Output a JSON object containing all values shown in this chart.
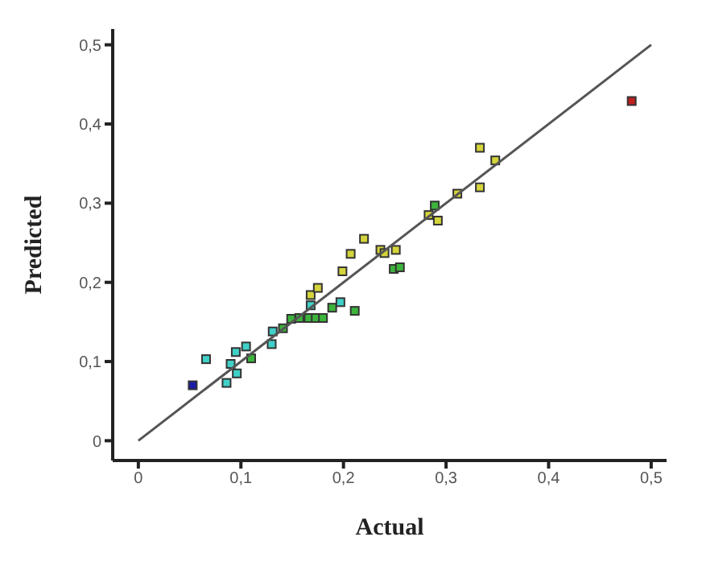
{
  "chart_data": {
    "type": "scatter",
    "xlabel": "Actual",
    "ylabel": "Predicted",
    "xlim": [
      -0.025,
      0.515
    ],
    "ylim": [
      -0.025,
      0.52
    ],
    "xticks": [
      {
        "value": 0,
        "label": "0"
      },
      {
        "value": 0.1,
        "label": "0,1"
      },
      {
        "value": 0.2,
        "label": "0,2"
      },
      {
        "value": 0.3,
        "label": "0,3"
      },
      {
        "value": 0.4,
        "label": "0,4"
      },
      {
        "value": 0.5,
        "label": "0,5"
      }
    ],
    "yticks": [
      {
        "value": 0,
        "label": "0"
      },
      {
        "value": 0.1,
        "label": "0,1"
      },
      {
        "value": 0.2,
        "label": "0,2"
      },
      {
        "value": 0.3,
        "label": "0,3"
      },
      {
        "value": 0.4,
        "label": "0,4"
      },
      {
        "value": 0.5,
        "label": "0,5"
      }
    ],
    "grid": false,
    "legend": false,
    "series": [
      {
        "marker": "square",
        "x": [
          0.053,
          0.066,
          0.086,
          0.096,
          0.09,
          0.095,
          0.105,
          0.11,
          0.13,
          0.131,
          0.141,
          0.149,
          0.157,
          0.166,
          0.173,
          0.18,
          0.168,
          0.168,
          0.175,
          0.189,
          0.197,
          0.211,
          0.199,
          0.207,
          0.22,
          0.236,
          0.24,
          0.251,
          0.249,
          0.255,
          0.283,
          0.289,
          0.292,
          0.311,
          0.333,
          0.333,
          0.348,
          0.481
        ],
        "values": [
          0.07,
          0.103,
          0.073,
          0.085,
          0.097,
          0.112,
          0.119,
          0.104,
          0.122,
          0.138,
          0.142,
          0.154,
          0.155,
          0.155,
          0.155,
          0.155,
          0.171,
          0.184,
          0.193,
          0.168,
          0.175,
          0.164,
          0.214,
          0.236,
          0.255,
          0.241,
          0.237,
          0.241,
          0.217,
          0.219,
          0.285,
          0.297,
          0.278,
          0.312,
          0.32,
          0.37,
          0.354,
          0.429
        ],
        "colors": [
          "#1c1ca8",
          "#40d0c8",
          "#40d0c8",
          "#40d0c8",
          "#40d0c8",
          "#40d0c8",
          "#40d0c8",
          "#3cb43c",
          "#40d0c8",
          "#40d0c8",
          "#3cb43c",
          "#3cb43c",
          "#3cb43c",
          "#3cb43c",
          "#3cb43c",
          "#3cb43c",
          "#40d0c8",
          "#d4d43c",
          "#d4d43c",
          "#3cb43c",
          "#40d0c8",
          "#3cb43c",
          "#d4d43c",
          "#d4d43c",
          "#d4d43c",
          "#d4d43c",
          "#d4d43c",
          "#d4d43c",
          "#3cb43c",
          "#3cb43c",
          "#d4d43c",
          "#3cb43c",
          "#d4d43c",
          "#d4d43c",
          "#d4d43c",
          "#d4d43c",
          "#d4d43c",
          "#c02020"
        ]
      },
      {
        "type": "line",
        "x": [
          0,
          0.5
        ],
        "values": [
          0,
          0.5
        ],
        "color": "#555555",
        "line_style": "solid"
      }
    ]
  }
}
